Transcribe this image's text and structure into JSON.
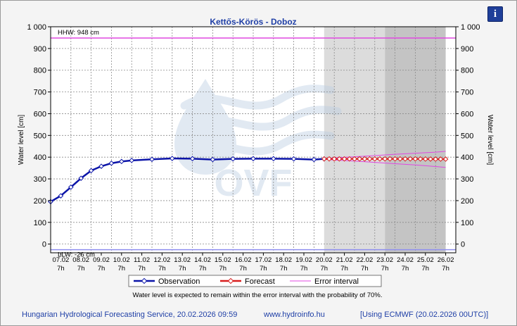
{
  "chart_data": {
    "type": "line",
    "title": "Kettős-Körös - Doboz",
    "ylabel": "Water level [cm]",
    "ylabel_right": "Water level [cm]",
    "ylim": [
      -40,
      1000
    ],
    "y_ticks": [
      "0",
      "100",
      "200",
      "300",
      "400",
      "500",
      "600",
      "700",
      "800",
      "900",
      "1 000"
    ],
    "y_tick_values": [
      0,
      100,
      200,
      300,
      400,
      500,
      600,
      700,
      800,
      900,
      1000
    ],
    "x_range_days": [
      0,
      20
    ],
    "x_tick_dates": [
      "07.02",
      "08.02",
      "09.02",
      "10.02",
      "11.02",
      "12.02",
      "13.02",
      "14.02",
      "15.02",
      "16.02",
      "17.02",
      "18.02",
      "19.02",
      "20.02",
      "21.02",
      "22.02",
      "23.02",
      "24.02",
      "25.02",
      "26.02"
    ],
    "x_tick_time": "7h",
    "grid": true,
    "legend_position": "bottom",
    "reference_lines": [
      {
        "label": "HHW: 948 cm",
        "value": 948,
        "color": "#e048e0"
      },
      {
        "label": "LLW: -26 cm",
        "value": -26,
        "color": "#8f8fef"
      }
    ],
    "series": [
      {
        "name": "Observation",
        "color": "#0b14a8",
        "x": [
          0.0,
          0.5,
          1.0,
          1.5,
          2.0,
          2.5,
          3.0,
          3.5,
          4.0,
          5.0,
          6.0,
          7.0,
          8.0,
          9.0,
          10.0,
          11.0,
          12.0,
          13.0,
          13.5
        ],
        "values": [
          195,
          222,
          262,
          303,
          338,
          358,
          372,
          380,
          385,
          390,
          394,
          393,
          389,
          392,
          393,
          393,
          392,
          389,
          392
        ]
      },
      {
        "name": "Forecast",
        "color": "#d81e1e",
        "x": [
          13.5,
          14.0,
          15.0,
          16.0,
          17.0,
          18.0,
          19.0,
          19.5
        ],
        "values": [
          392,
          392,
          392,
          392,
          392,
          392,
          391,
          391
        ]
      },
      {
        "name": "Error interval",
        "color": "#e048e0",
        "x": [
          13.5,
          14.0,
          15.0,
          16.0,
          17.0,
          18.0,
          19.0,
          19.5
        ],
        "upper": [
          394,
          397,
          402,
          407,
          413,
          418,
          423,
          427
        ],
        "lower": [
          390,
          387,
          382,
          376,
          370,
          364,
          357,
          353
        ]
      }
    ],
    "forecast_shading": [
      {
        "from": 13.5,
        "to": 16.5,
        "color": "#dcdcdc"
      },
      {
        "from": 16.5,
        "to": 19.5,
        "color": "#c4c4c4"
      }
    ],
    "note": "Water level is expected to remain within the error interval with the probability of 70%."
  },
  "footer": {
    "left": "Hungarian Hydrological Forecasting Service, 20.02.2026 09:59",
    "center": "www.hydroinfo.hu",
    "right": "[Using ECMWF (20.02.2026  00UTC)]"
  },
  "watermark_text": "OVF",
  "info_button_label": "i"
}
